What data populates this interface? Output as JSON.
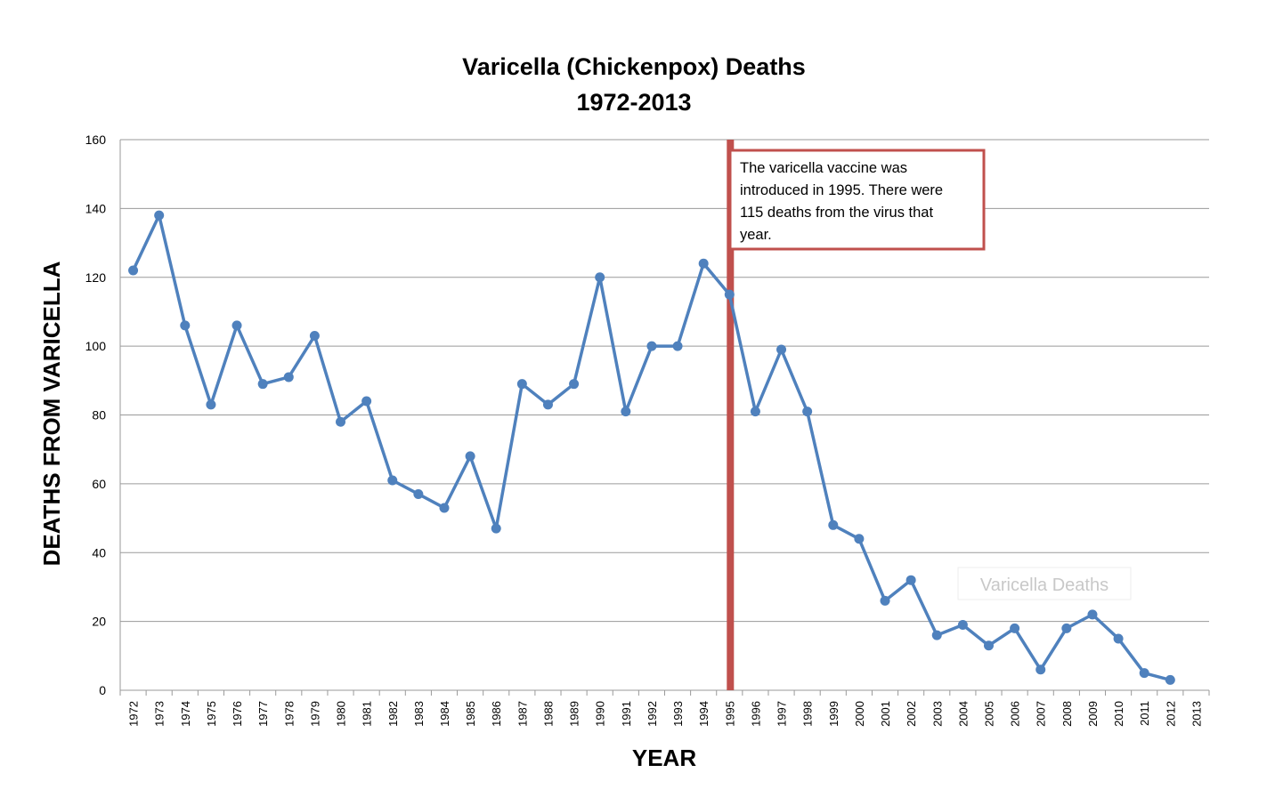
{
  "chart_data": {
    "type": "line",
    "title": "Varicella (Chickenpox) Deaths",
    "subtitle": "1972-2013",
    "xlabel": "YEAR",
    "ylabel": "DEATHS FROM VARICELLA",
    "ylim": [
      0,
      160
    ],
    "yticks": [
      0,
      20,
      40,
      60,
      80,
      100,
      120,
      140,
      160
    ],
    "grid": true,
    "categories": [
      "1972",
      "1973",
      "1974",
      "1975",
      "1976",
      "1977",
      "1978",
      "1979",
      "1980",
      "1981",
      "1982",
      "1983",
      "1984",
      "1985",
      "1986",
      "1987",
      "1988",
      "1989",
      "1990",
      "1991",
      "1992",
      "1993",
      "1994",
      "1995",
      "1996",
      "1997",
      "1998",
      "1999",
      "2000",
      "2001",
      "2002",
      "2003",
      "2004",
      "2005",
      "2006",
      "2007",
      "2008",
      "2009",
      "2010",
      "2011",
      "2012",
      "2013"
    ],
    "series": [
      {
        "name": "Varicella Deaths",
        "color": "#4F81BD",
        "values": [
          122,
          138,
          106,
          83,
          106,
          89,
          91,
          103,
          78,
          84,
          61,
          57,
          53,
          68,
          47,
          89,
          83,
          89,
          120,
          81,
          100,
          100,
          124,
          115,
          81,
          99,
          81,
          48,
          44,
          26,
          32,
          16,
          19,
          13,
          18,
          6,
          18,
          22,
          15,
          5,
          3,
          null
        ]
      }
    ],
    "annotation": {
      "year": "1995",
      "color": "#C0504D",
      "lines": [
        "The varicella vaccine was",
        "introduced in 1995. There were",
        "115 deaths from the virus that",
        "year."
      ]
    },
    "series_label": "Varicella Deaths"
  }
}
